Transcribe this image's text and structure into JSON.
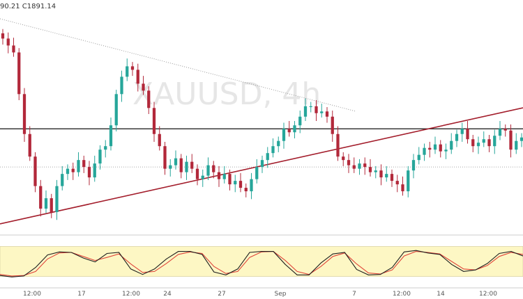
{
  "header": {
    "ohlc_text": "90.21  C1891.14"
  },
  "watermark": {
    "symbol": "XAUUSD, 4h"
  },
  "colors": {
    "up": "#26a69a",
    "down": "#b2283a",
    "line_red": "#a31d2b",
    "stoch_k": "#1f1f1f",
    "stoch_d": "#e0453a",
    "band_fill": "#fdf7c4"
  },
  "chart_data": [
    {
      "type": "candlestick",
      "title": "",
      "xlabel": "",
      "ylabel": "",
      "ylim": [
        1880,
        2005
      ],
      "grid": false,
      "x_ticks": [
        "12:00",
        "17",
        "12:00",
        "24",
        "27",
        "Sep",
        "7",
        "12:00",
        "14",
        "12:00"
      ],
      "close": [
        1990,
        1986,
        1982,
        1958,
        1935,
        1922,
        1905,
        1892,
        1898,
        1890,
        1905,
        1912,
        1915,
        1913,
        1920,
        1916,
        1910,
        1918,
        1926,
        1928,
        1940,
        1958,
        1968,
        1974,
        1972,
        1964,
        1960,
        1950,
        1935,
        1928,
        1915,
        1917,
        1921,
        1913,
        1919,
        1915,
        1909,
        1911,
        1917,
        1913,
        1909,
        1912,
        1906,
        1908,
        1904,
        1902,
        1909,
        1916,
        1920,
        1924,
        1928,
        1931,
        1938,
        1936,
        1940,
        1945,
        1951,
        1951,
        1947,
        1948,
        1945,
        1935,
        1922,
        1920,
        1917,
        1915,
        1918,
        1916,
        1913,
        1914,
        1910,
        1912,
        1908,
        1906,
        1902,
        1914,
        1920,
        1923,
        1927,
        1926,
        1929,
        1925,
        1926,
        1931,
        1935,
        1938,
        1932,
        1928,
        1930,
        1932,
        1928,
        1934,
        1938,
        1937,
        1926,
        1931,
        1933
      ],
      "stochastic": {
        "k": [
          22,
          19,
          21,
          38,
          63,
          69,
          68,
          57,
          49,
          66,
          68,
          35,
          24,
          35,
          55,
          70,
          70,
          64,
          29,
          23,
          35,
          68,
          70,
          70,
          44,
          23,
          23,
          47,
          65,
          68,
          34,
          23,
          24,
          38,
          69,
          72,
          67,
          64,
          44,
          30,
          33,
          46,
          66,
          70,
          61
        ],
        "d": [
          24,
          21,
          22,
          30,
          55,
          67,
          68,
          60,
          52,
          58,
          65,
          45,
          28,
          30,
          46,
          64,
          69,
          66,
          40,
          26,
          30,
          58,
          69,
          70,
          52,
          30,
          24,
          40,
          60,
          67,
          45,
          27,
          25,
          33,
          61,
          70,
          68,
          65,
          50,
          35,
          33,
          42,
          60,
          68,
          64
        ],
        "band": [
          20,
          80
        ]
      },
      "levels": {
        "resistance": 1938,
        "support": 1916
      }
    }
  ]
}
